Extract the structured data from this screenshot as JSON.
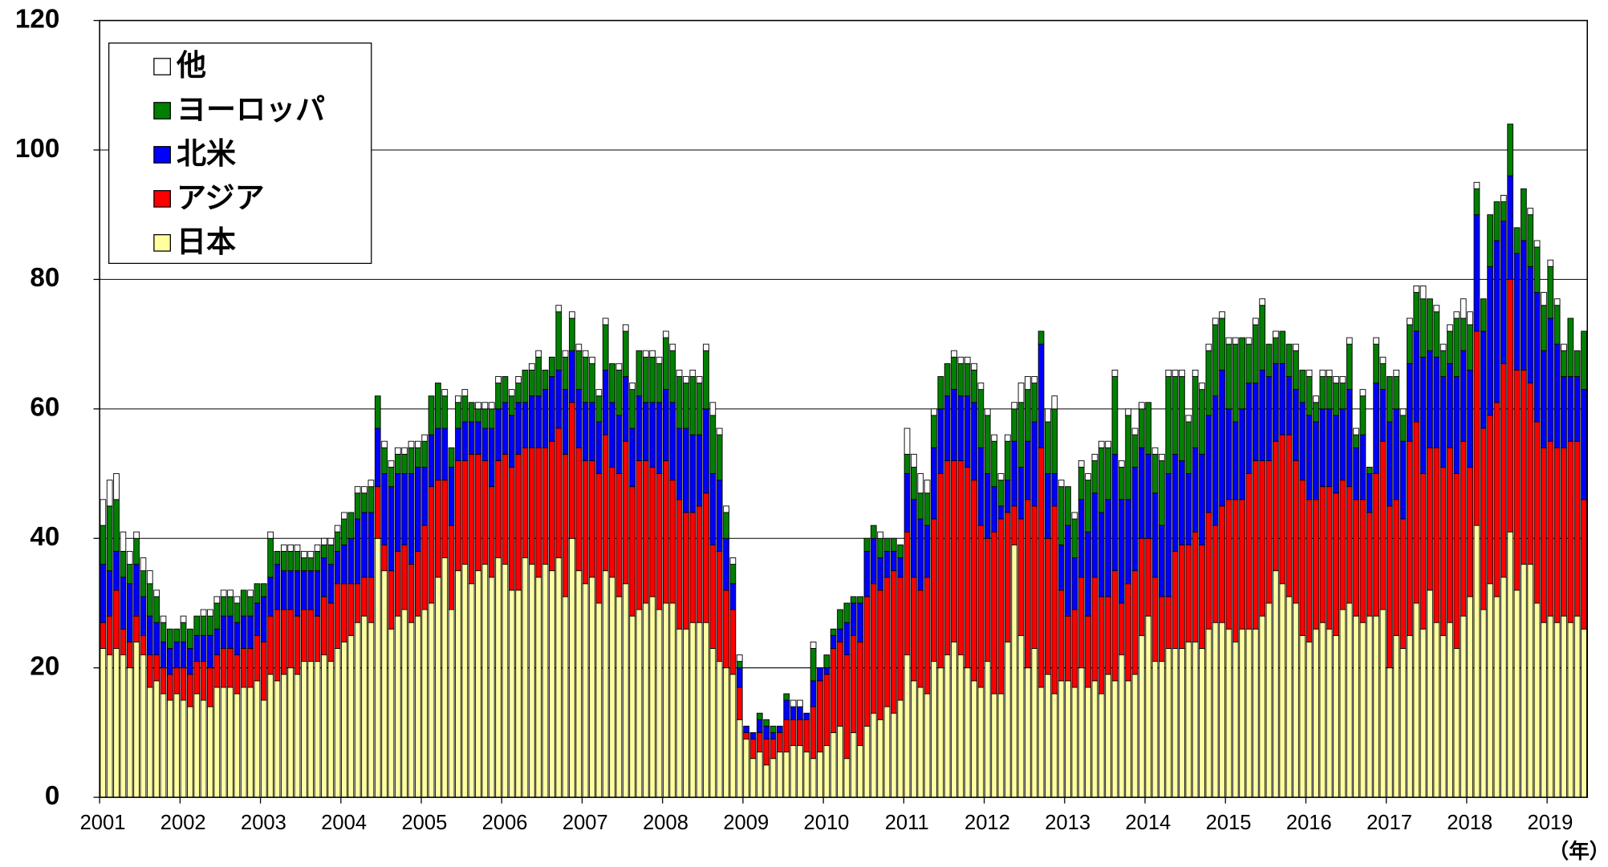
{
  "chart_data": {
    "type": "stacked-bar",
    "x_label": "（年）",
    "categories": [
      "2001",
      null,
      null,
      null,
      null,
      null,
      null,
      null,
      null,
      null,
      null,
      null,
      "2002",
      null,
      null,
      null,
      null,
      null,
      null,
      null,
      null,
      null,
      null,
      null,
      "2003",
      null,
      null,
      null,
      null,
      null,
      null,
      null,
      null,
      null,
      null,
      null,
      "2004",
      null,
      null,
      null,
      null,
      null,
      null,
      null,
      null,
      null,
      null,
      null,
      "2005",
      null,
      null,
      null,
      null,
      null,
      null,
      null,
      null,
      null,
      null,
      null,
      "2006",
      null,
      null,
      null,
      null,
      null,
      null,
      null,
      null,
      null,
      null,
      null,
      "2007",
      null,
      null,
      null,
      null,
      null,
      null,
      null,
      null,
      null,
      null,
      null,
      "2008",
      null,
      null,
      null,
      null,
      null,
      null,
      null,
      null,
      null,
      null,
      null,
      "2009",
      null,
      null,
      null,
      null,
      null,
      null,
      null,
      null,
      null,
      null,
      null,
      "2010",
      null,
      null,
      null,
      null,
      null,
      null,
      null,
      null,
      null,
      null,
      null,
      "2011",
      null,
      null,
      null,
      null,
      null,
      null,
      null,
      null,
      null,
      null,
      null,
      "2012",
      null,
      null,
      null,
      null,
      null,
      null,
      null,
      null,
      null,
      null,
      null,
      "2013",
      null,
      null,
      null,
      null,
      null,
      null,
      null,
      null,
      null,
      null,
      null,
      "2014",
      null,
      null,
      null,
      null,
      null,
      null,
      null,
      null,
      null,
      null,
      null,
      "2015",
      null,
      null,
      null,
      null,
      null,
      null,
      null,
      null,
      null,
      null,
      null,
      "2016",
      null,
      null,
      null,
      null,
      null,
      null,
      null,
      null,
      null,
      null,
      null,
      "2017",
      null,
      null,
      null,
      null,
      null,
      null,
      null,
      null,
      null,
      null,
      null,
      "2018",
      null,
      null,
      null,
      null,
      null,
      null,
      null,
      null,
      null,
      null,
      null,
      "2019",
      null,
      null,
      null,
      null,
      null
    ],
    "series": [
      {
        "name": "日本",
        "color": "#ffffa0",
        "values": [
          23,
          22,
          23,
          22,
          20,
          24,
          22,
          17,
          18,
          16,
          15,
          16,
          15,
          14,
          16,
          15,
          14,
          17,
          17,
          17,
          16,
          17,
          17,
          18,
          15,
          19,
          18,
          19,
          20,
          19,
          21,
          21,
          21,
          22,
          21,
          23,
          24,
          25,
          27,
          28,
          27,
          40,
          35,
          26,
          28,
          29,
          27,
          28,
          29,
          30,
          34,
          37,
          29,
          35,
          36,
          33,
          35,
          36,
          34,
          37,
          36,
          32,
          32,
          37,
          36,
          34,
          36,
          35,
          37,
          31,
          40,
          35,
          33,
          34,
          30,
          35,
          34,
          31,
          33,
          28,
          29,
          30,
          31,
          29,
          30,
          30,
          26,
          26,
          27,
          27,
          27,
          23,
          21,
          20,
          19,
          12,
          9,
          6,
          7,
          5,
          6,
          7,
          7,
          8,
          8,
          7,
          6,
          7,
          8,
          10,
          11,
          6,
          10,
          8,
          11,
          13,
          12,
          14,
          13,
          15,
          22,
          18,
          17,
          16,
          21,
          20,
          22,
          24,
          22,
          20,
          18,
          17,
          21,
          16,
          16,
          24,
          39,
          25,
          20,
          23,
          17,
          19,
          16,
          18,
          18,
          17,
          20,
          17,
          18,
          16,
          19,
          18,
          22,
          18,
          19,
          25,
          28,
          21,
          21,
          23,
          23,
          23,
          24,
          24,
          23,
          26,
          27,
          27,
          26,
          24,
          26,
          26,
          26,
          28,
          30,
          35,
          33,
          31,
          30,
          25,
          24,
          26,
          27,
          26,
          25,
          29,
          30,
          28,
          27,
          28,
          28,
          29,
          20,
          25,
          23,
          25,
          30,
          26,
          32,
          27,
          25,
          27,
          23,
          28,
          31,
          42,
          29,
          33,
          31,
          34,
          41,
          32,
          36,
          36,
          30,
          27,
          28,
          27,
          28,
          27,
          28,
          26
        ]
      },
      {
        "name": "アジア",
        "color": "#ff0000",
        "values": [
          4,
          6,
          9,
          4,
          4,
          4,
          3,
          5,
          4,
          4,
          4,
          4,
          5,
          5,
          5,
          6,
          6,
          5,
          6,
          6,
          6,
          6,
          6,
          7,
          9,
          9,
          11,
          10,
          9,
          9,
          8,
          8,
          7,
          9,
          9,
          10,
          9,
          8,
          6,
          6,
          7,
          8,
          4,
          9,
          10,
          10,
          9,
          10,
          13,
          18,
          15,
          12,
          13,
          17,
          16,
          20,
          18,
          16,
          14,
          15,
          17,
          19,
          21,
          17,
          18,
          20,
          18,
          20,
          20,
          22,
          21,
          19,
          19,
          18,
          20,
          21,
          17,
          19,
          22,
          20,
          23,
          22,
          20,
          21,
          22,
          19,
          20,
          18,
          17,
          18,
          20,
          16,
          17,
          12,
          10,
          5,
          1,
          3,
          3,
          4,
          3,
          3,
          5,
          4,
          4,
          5,
          8,
          11,
          11,
          13,
          13,
          16,
          15,
          16,
          20,
          20,
          20,
          20,
          22,
          19,
          19,
          16,
          15,
          18,
          22,
          30,
          30,
          28,
          30,
          31,
          31,
          25,
          19,
          25,
          27,
          20,
          6,
          18,
          26,
          22,
          37,
          21,
          29,
          14,
          10,
          12,
          14,
          11,
          16,
          15,
          12,
          17,
          8,
          15,
          16,
          15,
          12,
          13,
          10,
          8,
          15,
          16,
          15,
          17,
          16,
          18,
          15,
          18,
          20,
          22,
          20,
          24,
          26,
          24,
          22,
          20,
          23,
          25,
          22,
          24,
          22,
          20,
          21,
          22,
          22,
          20,
          18,
          18,
          19,
          16,
          22,
          26,
          25,
          21,
          20,
          30,
          28,
          24,
          22,
          27,
          26,
          27,
          27,
          27,
          20,
          30,
          28,
          26,
          30,
          33,
          39,
          34,
          30,
          28,
          28,
          27,
          27,
          27,
          26,
          28,
          27,
          20
        ]
      },
      {
        "name": "北米",
        "color": "#0000ff",
        "values": [
          9,
          7,
          6,
          8,
          9,
          8,
          6,
          6,
          5,
          4,
          4,
          4,
          4,
          4,
          4,
          4,
          5,
          4,
          5,
          5,
          5,
          5,
          5,
          5,
          7,
          6,
          7,
          6,
          6,
          7,
          6,
          6,
          7,
          6,
          6,
          5,
          6,
          7,
          10,
          10,
          10,
          9,
          11,
          13,
          12,
          11,
          14,
          13,
          9,
          8,
          8,
          8,
          9,
          5,
          6,
          5,
          5,
          5,
          9,
          8,
          8,
          8,
          8,
          7,
          8,
          8,
          9,
          10,
          9,
          10,
          8,
          9,
          9,
          9,
          8,
          10,
          10,
          9,
          10,
          9,
          10,
          9,
          10,
          11,
          11,
          12,
          11,
          13,
          12,
          11,
          13,
          11,
          11,
          8,
          4,
          3,
          1,
          1,
          2,
          2,
          1,
          1,
          3,
          2,
          2,
          1,
          4,
          2,
          1,
          2,
          2,
          5,
          5,
          6,
          7,
          7,
          5,
          4,
          3,
          3,
          9,
          12,
          11,
          8,
          11,
          10,
          10,
          11,
          10,
          11,
          12,
          12,
          10,
          7,
          2,
          5,
          10,
          8,
          9,
          13,
          16,
          10,
          5,
          7,
          14,
          8,
          12,
          13,
          13,
          13,
          15,
          18,
          16,
          13,
          16,
          14,
          13,
          13,
          11,
          19,
          15,
          13,
          11,
          13,
          14,
          15,
          20,
          21,
          14,
          12,
          14,
          14,
          12,
          14,
          13,
          12,
          11,
          9,
          11,
          12,
          13,
          12,
          12,
          12,
          12,
          11,
          15,
          8,
          10,
          6,
          14,
          8,
          13,
          14,
          12,
          12,
          14,
          18,
          15,
          14,
          14,
          13,
          15,
          14,
          15,
          18,
          15,
          23,
          25,
          22,
          16,
          18,
          20,
          18,
          20,
          15,
          19,
          16,
          11,
          10,
          10,
          17
        ]
      },
      {
        "name": "ヨーロッパ",
        "color": "#008000",
        "values": [
          6,
          10,
          8,
          4,
          3,
          4,
          4,
          5,
          4,
          3,
          3,
          2,
          3,
          3,
          3,
          3,
          3,
          4,
          3,
          3,
          3,
          4,
          3,
          3,
          2,
          6,
          2,
          3,
          3,
          3,
          2,
          2,
          3,
          2,
          3,
          3,
          4,
          4,
          4,
          3,
          4,
          5,
          4,
          3,
          3,
          3,
          4,
          3,
          4,
          6,
          7,
          5,
          3,
          4,
          4,
          3,
          2,
          3,
          3,
          4,
          4,
          3,
          3,
          5,
          4,
          6,
          3,
          3,
          9,
          5,
          5,
          6,
          7,
          6,
          4,
          7,
          6,
          7,
          7,
          6,
          7,
          7,
          7,
          6,
          8,
          8,
          8,
          7,
          9,
          8,
          9,
          9,
          7,
          4,
          3,
          1,
          0,
          0,
          1,
          1,
          1,
          0,
          1,
          0,
          0,
          0,
          5,
          0,
          2,
          1,
          3,
          3,
          1,
          1,
          2,
          2,
          3,
          2,
          2,
          2,
          3,
          5,
          4,
          5,
          5,
          5,
          5,
          5,
          5,
          5,
          5,
          9,
          9,
          7,
          4,
          6,
          5,
          10,
          8,
          6,
          2,
          8,
          10,
          9,
          6,
          6,
          5,
          8,
          5,
          10,
          8,
          12,
          5,
          13,
          5,
          6,
          8,
          6,
          10,
          15,
          12,
          13,
          8,
          11,
          10,
          10,
          11,
          8,
          10,
          12,
          11,
          6,
          9,
          10,
          5,
          4,
          5,
          5,
          6,
          5,
          6,
          3,
          5,
          5,
          5,
          4,
          7,
          2,
          6,
          1,
          6,
          4,
          7,
          5,
          4,
          6,
          6,
          9,
          8,
          7,
          4,
          5,
          9,
          5,
          7,
          4,
          5,
          8,
          6,
          3,
          8,
          4,
          8,
          8,
          7,
          7,
          8,
          6,
          4,
          9,
          4,
          9
        ]
      },
      {
        "name": "他",
        "color": "#ffffff",
        "values": [
          4,
          4,
          4,
          3,
          2,
          1,
          2,
          2,
          1,
          1,
          0,
          0,
          1,
          0,
          0,
          1,
          1,
          1,
          1,
          1,
          1,
          0,
          1,
          0,
          0,
          1,
          0,
          1,
          1,
          1,
          1,
          1,
          1,
          1,
          1,
          1,
          1,
          0,
          1,
          1,
          1,
          0,
          1,
          1,
          1,
          1,
          1,
          1,
          1,
          0,
          0,
          1,
          0,
          1,
          1,
          0,
          1,
          1,
          1,
          1,
          0,
          1,
          1,
          0,
          1,
          1,
          0,
          0,
          1,
          1,
          1,
          1,
          1,
          1,
          1,
          1,
          0,
          1,
          1,
          1,
          0,
          1,
          1,
          1,
          1,
          1,
          1,
          1,
          1,
          1,
          1,
          2,
          1,
          1,
          1,
          1,
          0,
          0,
          0,
          0,
          0,
          0,
          0,
          1,
          1,
          0,
          1,
          0,
          0,
          0,
          0,
          0,
          0,
          0,
          0,
          0,
          1,
          0,
          0,
          0,
          4,
          2,
          3,
          2,
          1,
          0,
          0,
          1,
          1,
          1,
          1,
          1,
          1,
          1,
          1,
          1,
          1,
          3,
          2,
          1,
          0,
          2,
          2,
          1,
          0,
          1,
          1,
          1,
          1,
          1,
          1,
          1,
          1,
          1,
          1,
          1,
          0,
          1,
          1,
          1,
          1,
          1,
          1,
          1,
          1,
          1,
          1,
          1,
          1,
          1,
          0,
          1,
          1,
          1,
          0,
          1,
          0,
          0,
          1,
          0,
          1,
          1,
          1,
          1,
          1,
          1,
          1,
          1,
          1,
          0,
          1,
          1,
          0,
          1,
          1,
          1,
          1,
          2,
          0,
          1,
          1,
          1,
          1,
          3,
          2,
          1,
          0,
          0,
          0,
          1,
          0,
          0,
          0,
          1,
          1,
          2,
          1,
          1,
          1,
          0,
          0,
          0
        ]
      }
    ],
    "ylim": [
      0,
      120
    ],
    "yticks": [
      0,
      20,
      40,
      60,
      80,
      100,
      120
    ],
    "grid": true,
    "legend": "upper left"
  }
}
